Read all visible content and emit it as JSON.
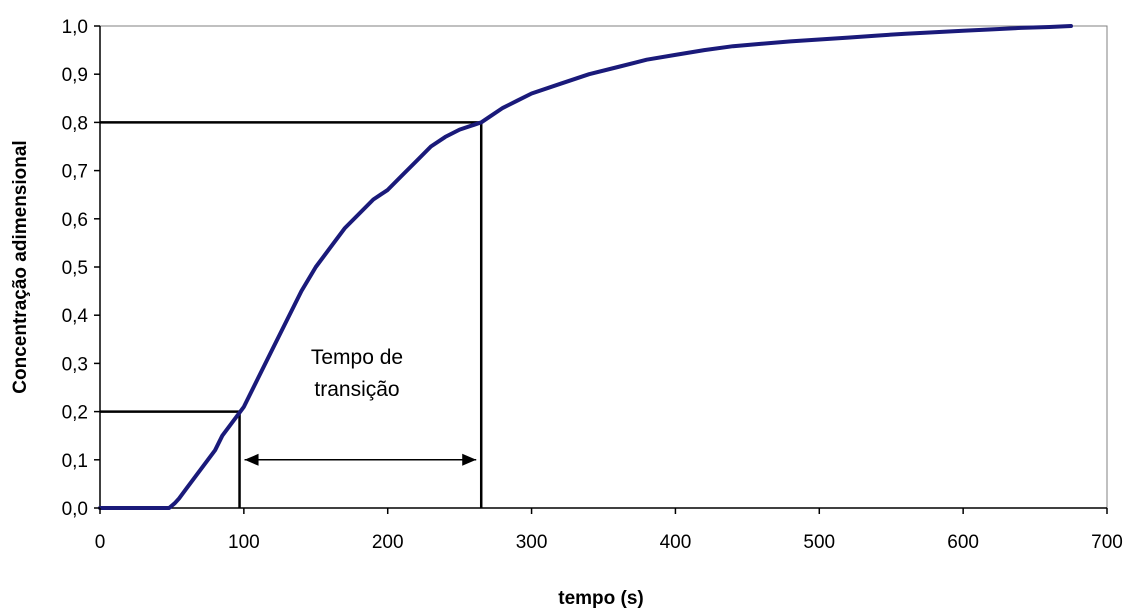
{
  "chart_data": {
    "type": "line",
    "title": "",
    "xlabel": "tempo (s)",
    "ylabel": "Concentração adimensional",
    "xlim": [
      0,
      700
    ],
    "ylim": [
      0,
      1.0
    ],
    "x_ticks": [
      "0",
      "100",
      "200",
      "300",
      "400",
      "500",
      "600",
      "700"
    ],
    "y_ticks": [
      "0,0",
      "0,1",
      "0,2",
      "0,3",
      "0,4",
      "0,5",
      "0,6",
      "0,7",
      "0,8",
      "0,9",
      "1,0"
    ],
    "grid": false,
    "legend": "none",
    "line_color": "#1a1a7a",
    "series": [
      {
        "x": [
          0,
          20,
          40,
          48,
          52,
          55,
          60,
          65,
          70,
          75,
          80,
          85,
          90,
          95,
          100,
          110,
          120,
          130,
          140,
          150,
          160,
          170,
          180,
          190,
          200,
          210,
          220,
          230,
          240,
          250,
          260,
          265,
          270,
          280,
          290,
          300,
          320,
          340,
          360,
          380,
          400,
          420,
          440,
          460,
          480,
          500,
          520,
          540,
          560,
          580,
          600,
          620,
          640,
          660,
          675
        ],
        "y": [
          0.0,
          0.0,
          0.0,
          0.0,
          0.01,
          0.02,
          0.04,
          0.06,
          0.08,
          0.1,
          0.12,
          0.15,
          0.17,
          0.19,
          0.21,
          0.27,
          0.33,
          0.39,
          0.45,
          0.5,
          0.54,
          0.58,
          0.61,
          0.64,
          0.66,
          0.69,
          0.72,
          0.75,
          0.77,
          0.785,
          0.795,
          0.8,
          0.81,
          0.83,
          0.845,
          0.86,
          0.88,
          0.9,
          0.915,
          0.93,
          0.94,
          0.95,
          0.958,
          0.963,
          0.968,
          0.972,
          0.976,
          0.98,
          0.984,
          0.987,
          0.99,
          0.993,
          0.996,
          0.998,
          1.0
        ]
      }
    ],
    "reference_lines": [
      {
        "y": 0.2,
        "x_end": 97
      },
      {
        "y": 0.8,
        "x_end": 265
      }
    ],
    "annotation": {
      "text_line1": "Tempo de",
      "text_line2": "transição",
      "arrow_from_x": 97,
      "arrow_to_x": 265,
      "arrow_y": 0.1
    }
  }
}
